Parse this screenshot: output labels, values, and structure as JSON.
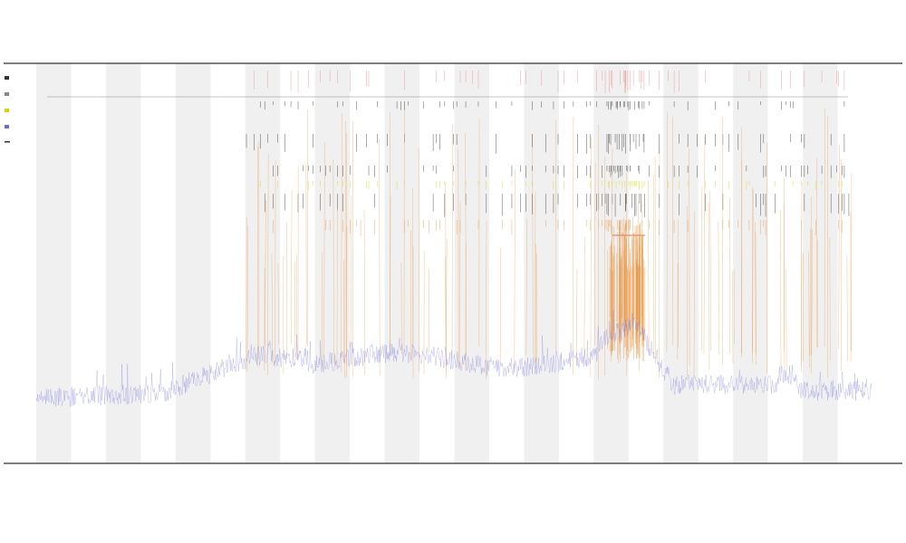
{
  "chart_data": {
    "type": "line",
    "title": "",
    "subtitles": [],
    "xlabel": "",
    "ylabel": "",
    "legend": {
      "placement": "top-left",
      "entries": []
    },
    "grid": true,
    "band_count": 24,
    "tracks": [
      {
        "name": "",
        "color": "#555555",
        "kind": "ticks"
      },
      {
        "name": "",
        "color": "#e88080",
        "kind": "ticks"
      },
      {
        "name": "",
        "color": "#222222",
        "kind": "ticks"
      },
      {
        "name": "",
        "color": "#222222",
        "kind": "ticks"
      },
      {
        "name": "",
        "color": "#222222",
        "kind": "ticks"
      },
      {
        "name": "",
        "color": "#d4d400",
        "kind": "ticks"
      },
      {
        "name": "",
        "color": "#222222",
        "kind": "ticks"
      },
      {
        "name": "",
        "color": "#e8903a",
        "kind": "spikes"
      }
    ],
    "series": [
      {
        "kind": "signal",
        "color": "#6b6bdc"
      }
    ],
    "colors": {
      "band": "#f0f0f0",
      "signal": "#6b6bdc",
      "spike": "#e8903a",
      "axis": "#333333",
      "highlight": "#e87050"
    },
    "x_tick_labels": []
  }
}
